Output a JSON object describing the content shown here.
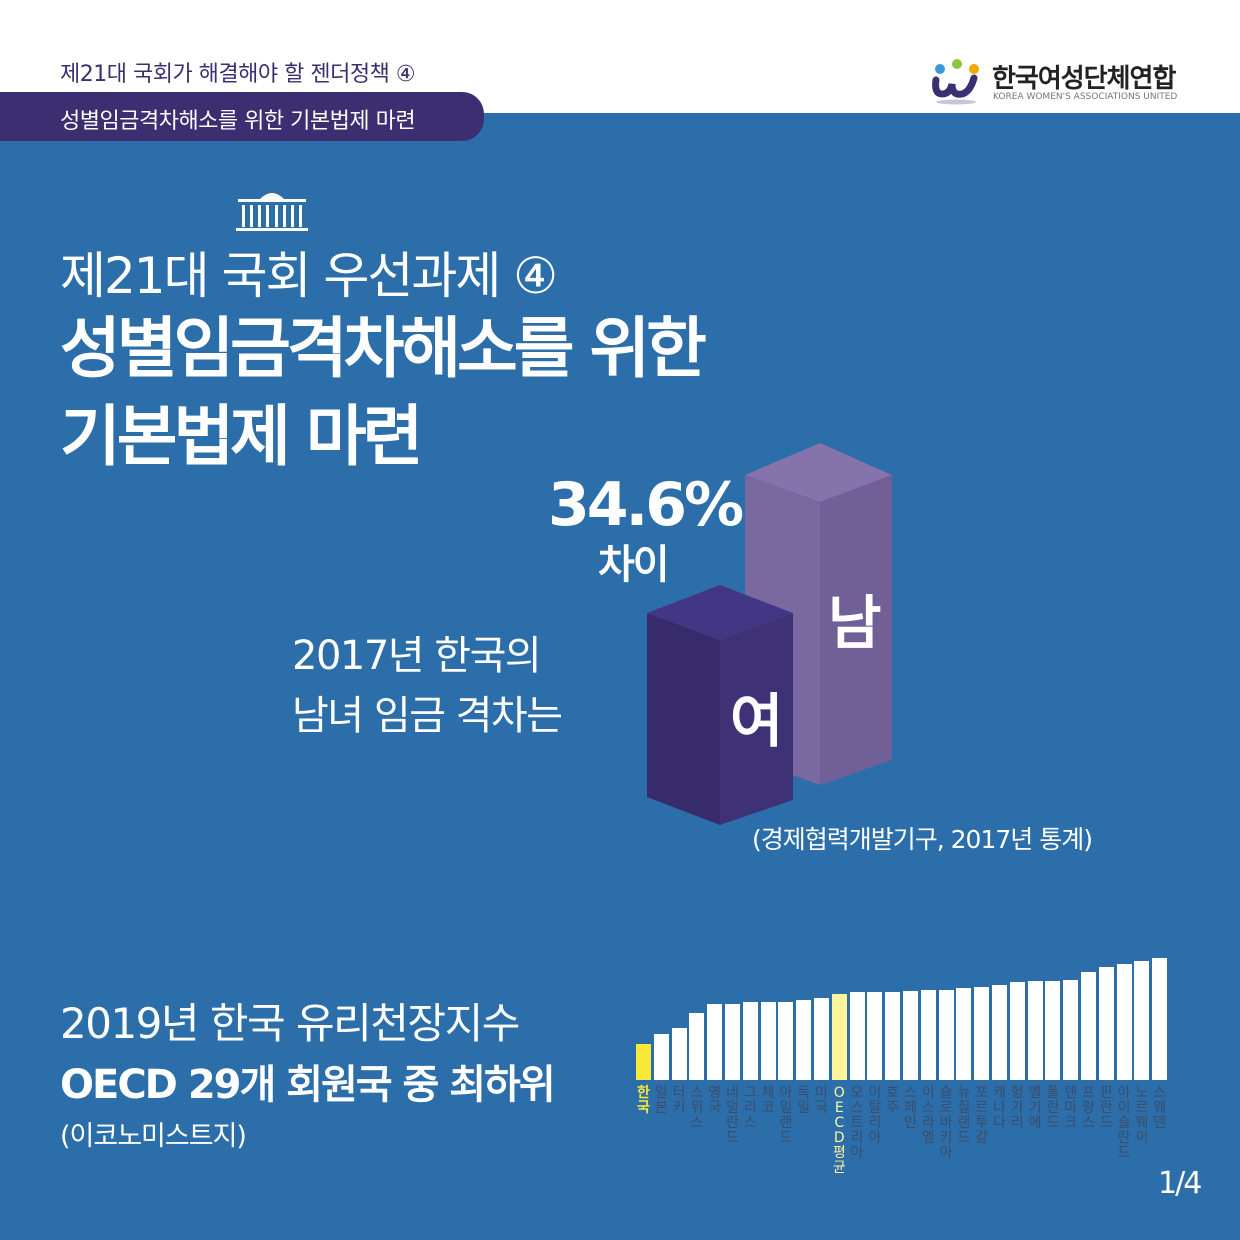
{
  "header": {
    "series_title": "제21대 국회가 해결해야 할 젠더정책 ④",
    "subtitle_pill": "성별임금격차해소를 위한 기본법제 마련",
    "logo": {
      "name_kr": "한국여성단체연합",
      "name_en": "KOREA WOMEN'S ASSOCIATIONS UNITED"
    }
  },
  "main": {
    "title_line1": "제21대 국회 우선과제 ④",
    "title_line2": "성별임금격차해소를 위한",
    "title_line3": "기본법제 마련",
    "gap_percent": "34.6%",
    "gap_label": "차이",
    "lead_line1": "2017년 한국의",
    "lead_line2": "남녀 임금 격차는",
    "female_label": "여",
    "male_label": "남",
    "source": "(경제협력개발기구, 2017년 통계)",
    "colors": {
      "background": "#2b6ea9",
      "purple": "#3b2f72",
      "male": "#7a68a0"
    }
  },
  "bottom": {
    "line1": "2019년 한국 유리천장지수",
    "line2": "OECD 29개 회원국 중 최하위",
    "source": "(이코노미스트지)"
  },
  "chart_data": {
    "type": "bar",
    "title": "",
    "xlabel": "",
    "ylabel": "",
    "categories": [
      "한국",
      "일본",
      "터키",
      "스위스",
      "영국",
      "네덜란드",
      "그리스",
      "체코",
      "아일랜드",
      "독일",
      "미국",
      "OECD평균",
      "오스트리아",
      "이탈리아",
      "호주",
      "스페인",
      "이스라엘",
      "슬로바키아",
      "뉴질랜드",
      "포르투갈",
      "캐나다",
      "헝가리",
      "벨기에",
      "폴란드",
      "덴마크",
      "프랑스",
      "핀란드",
      "아이슬란드",
      "노르웨이",
      "스웨덴"
    ],
    "values": [
      20,
      27,
      31,
      42,
      48,
      48,
      49,
      49,
      49,
      51,
      52,
      55,
      56,
      56,
      56,
      57,
      58,
      58,
      59,
      60,
      61,
      63,
      64,
      64,
      65,
      70,
      74,
      76,
      78,
      80
    ],
    "highlight": {
      "한국": "#f7e83a",
      "OECD평균": "#fdf39a"
    }
  },
  "page_indicator": "1/4"
}
